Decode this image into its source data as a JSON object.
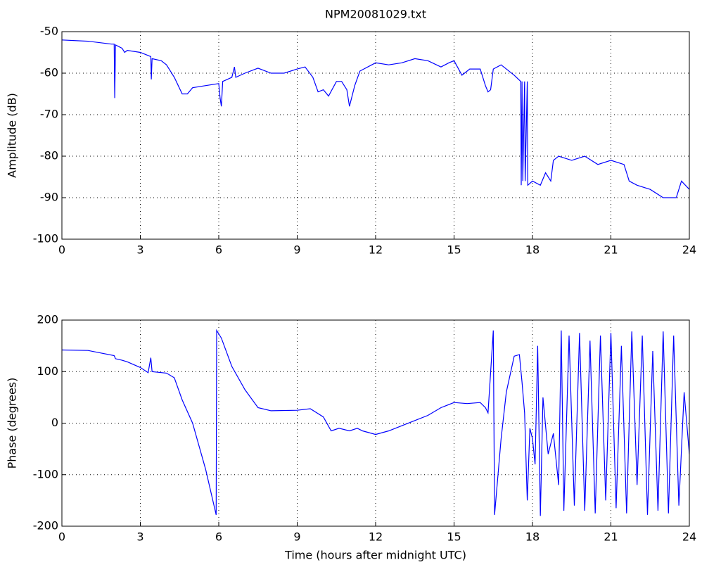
{
  "chart_data": [
    {
      "type": "line",
      "title": "NPM20081029.txt",
      "ylabel": "Amplitude (dB)",
      "xlim": [
        0,
        24
      ],
      "xticks": [
        0,
        3,
        6,
        9,
        12,
        15,
        18,
        21,
        24
      ],
      "ylim": [
        -100,
        -50
      ],
      "yticks": [
        -100,
        -90,
        -80,
        -70,
        -60,
        -50
      ],
      "grid": true,
      "series": [
        {
          "name": "Amplitude",
          "color": "#0000ff",
          "x": [
            0,
            1,
            1.9,
            2.0,
            2.02,
            2.05,
            2.3,
            2.4,
            2.5,
            3,
            3.4,
            3.42,
            3.45,
            3.8,
            4.0,
            4.3,
            4.6,
            4.8,
            5.0,
            5.5,
            6.0,
            6.05,
            6.1,
            6.15,
            6.5,
            6.6,
            6.65,
            7.0,
            7.5,
            8.0,
            8.5,
            9.0,
            9.3,
            9.6,
            9.8,
            10.0,
            10.2,
            10.5,
            10.7,
            10.9,
            11.0,
            11.2,
            11.4,
            12,
            12.5,
            13,
            13.5,
            14,
            14.5,
            14.8,
            15.0,
            15.3,
            15.6,
            16.0,
            16.2,
            16.3,
            16.4,
            16.5,
            16.8,
            17.3,
            17.55,
            17.57,
            17.6,
            17.63,
            17.7,
            17.72,
            17.8,
            17.82,
            18.0,
            18.3,
            18.5,
            18.7,
            18.8,
            19,
            19.5,
            20,
            20.5,
            21,
            21.5,
            21.7,
            22,
            22.5,
            23,
            23.5,
            23.7,
            24
          ],
          "values": [
            -52,
            -52.3,
            -53,
            -53,
            -66,
            -53.2,
            -54,
            -55,
            -54.5,
            -55,
            -56,
            -61.5,
            -56.5,
            -57,
            -58,
            -61,
            -65,
            -65,
            -63.5,
            -63,
            -62.5,
            -66,
            -68,
            -62,
            -61,
            -58.5,
            -61,
            -60,
            -58.8,
            -60,
            -60,
            -59,
            -58.5,
            -61,
            -64.5,
            -64,
            -65.5,
            -62,
            -62,
            -64,
            -68,
            -63,
            -59.5,
            -57.5,
            -58,
            -57.5,
            -56.5,
            -57,
            -58.5,
            -57.5,
            -57,
            -60.5,
            -59,
            -59,
            -63,
            -64.5,
            -64,
            -59,
            -58,
            -60.5,
            -62,
            -87,
            -62,
            -86,
            -62,
            -86,
            -62,
            -87,
            -86,
            -87,
            -84,
            -86,
            -81,
            -80,
            -81,
            -80,
            -82,
            -81,
            -82,
            -86,
            -87,
            -88,
            -90,
            -90,
            -86,
            -88
          ]
        }
      ]
    },
    {
      "type": "line",
      "ylabel": "Phase (degrees)",
      "xlabel": "Time (hours after midnight UTC)",
      "xlim": [
        0,
        24
      ],
      "xticks": [
        0,
        3,
        6,
        9,
        12,
        15,
        18,
        21,
        24
      ],
      "ylim": [
        -200,
        200
      ],
      "yticks": [
        -200,
        -100,
        0,
        100,
        200
      ],
      "grid": true,
      "series": [
        {
          "name": "Phase",
          "color": "#0000ff",
          "x": [
            0,
            1,
            2,
            2.05,
            2.3,
            2.5,
            3,
            3.3,
            3.4,
            3.45,
            4,
            4.3,
            4.6,
            5,
            5.5,
            5.9,
            5.92,
            6.1,
            6.5,
            7,
            7.5,
            8,
            9,
            9.5,
            10,
            10.3,
            10.6,
            11,
            11.3,
            11.5,
            12,
            12.5,
            13,
            13.5,
            14,
            14.5,
            15,
            15.5,
            16,
            16.2,
            16.3,
            16.5,
            16.55,
            16.8,
            17,
            17.3,
            17.5,
            17.6,
            17.7,
            17.8,
            17.9,
            18,
            18.1,
            18.2,
            18.3,
            18.4,
            18.6,
            18.8,
            19.0,
            19.1,
            19.2,
            19.4,
            19.6,
            19.8,
            20.0,
            20.2,
            20.4,
            20.6,
            20.8,
            21.0,
            21.2,
            21.4,
            21.6,
            21.8,
            22.0,
            22.2,
            22.4,
            22.6,
            22.8,
            23.0,
            23.2,
            23.4,
            23.6,
            23.8,
            24
          ],
          "values": [
            142,
            141,
            131,
            125,
            122,
            119,
            108,
            98,
            127,
            100,
            97,
            88,
            45,
            0,
            -90,
            -178,
            180,
            165,
            110,
            65,
            30,
            24,
            25,
            28,
            12,
            -15,
            -10,
            -15,
            -10,
            -15,
            -22,
            -15,
            -5,
            5,
            15,
            30,
            40,
            38,
            40,
            30,
            20,
            180,
            -178,
            -30,
            60,
            130,
            133,
            80,
            20,
            -150,
            -10,
            -30,
            -80,
            150,
            -180,
            50,
            -60,
            -20,
            -120,
            180,
            -170,
            170,
            -160,
            175,
            -170,
            160,
            -175,
            170,
            -150,
            175,
            -165,
            150,
            -175,
            178,
            -120,
            170,
            -178,
            140,
            -170,
            178,
            -175,
            170,
            -160,
            60,
            -60
          ]
        }
      ]
    }
  ]
}
